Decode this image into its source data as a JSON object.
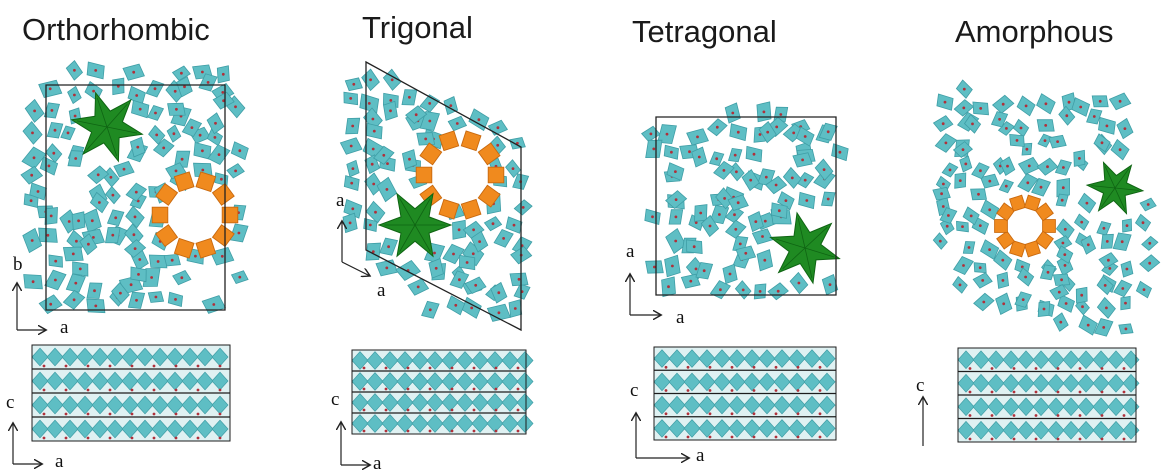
{
  "colors": {
    "framework": "#5ebec4",
    "framework_dark": "#3f9ea6",
    "ring8": "#f08a1e",
    "ring8_dark": "#c9690e",
    "star": "#1f8a22",
    "star_dark": "#0f6413",
    "cell_line": "#222222"
  },
  "panels": [
    {
      "title": "Orthorhombic",
      "top_axes": {
        "horizontal": "a",
        "vertical": "b"
      },
      "side_axes": {
        "horizontal": "a",
        "vertical": "c"
      }
    },
    {
      "title": "Trigonal",
      "top_axes": {
        "horizontal": "a",
        "vertical": "a"
      },
      "side_axes": {
        "horizontal": "a",
        "vertical": "c"
      }
    },
    {
      "title": "Tetragonal",
      "top_axes": {
        "horizontal": "a",
        "vertical": "a"
      },
      "side_axes": {
        "horizontal": "a",
        "vertical": "c"
      }
    },
    {
      "title": "Amorphous",
      "side_axes": {
        "vertical": "c"
      }
    }
  ]
}
